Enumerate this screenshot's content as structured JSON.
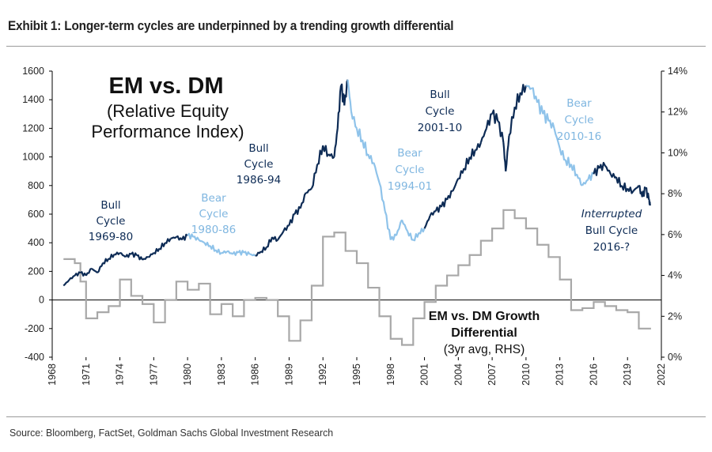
{
  "title": "Exhibit 1: Longer-term cycles are underpinned by a trending growth differential",
  "source": "Source: Bloomberg, FactSet, Goldman Sachs Global Investment Research",
  "colors": {
    "bull": "#0d2b55",
    "bear": "#8fc3ea",
    "growth": "#a8a8a8",
    "axis": "#000000"
  },
  "chart_data": {
    "type": "line",
    "title": "EM vs. DM (Relative Equity Performance Index)",
    "xlim": [
      1968,
      2022
    ],
    "ylim_left": [
      -400,
      1600
    ],
    "ylim_right": [
      0,
      14
    ],
    "x_ticks": [
      "1968",
      "1971",
      "1974",
      "1977",
      "1980",
      "1983",
      "1986",
      "1989",
      "1992",
      "1995",
      "1998",
      "2001",
      "2004",
      "2007",
      "2010",
      "2013",
      "2016",
      "2019",
      "2022"
    ],
    "y_left_ticks": [
      "1600",
      "1400",
      "1200",
      "1000",
      "800",
      "600",
      "400",
      "200",
      "0",
      "-200",
      "-400"
    ],
    "y_right_ticks": [
      "14%",
      "12%",
      "10%",
      "8%",
      "6%",
      "4%",
      "2%",
      "0%"
    ],
    "series": [
      {
        "name": "EM vs. DM Relative Equity Performance Index",
        "axis": "left",
        "points": [
          [
            1969.0,
            100
          ],
          [
            1969.5,
            140
          ],
          [
            1970.0,
            170
          ],
          [
            1970.5,
            190
          ],
          [
            1971.0,
            170
          ],
          [
            1971.5,
            220
          ],
          [
            1972.0,
            190
          ],
          [
            1972.5,
            260
          ],
          [
            1973.0,
            290
          ],
          [
            1973.5,
            320
          ],
          [
            1974.0,
            330
          ],
          [
            1974.5,
            300
          ],
          [
            1975.0,
            320
          ],
          [
            1975.5,
            310
          ],
          [
            1976.0,
            280
          ],
          [
            1976.5,
            300
          ],
          [
            1977.0,
            330
          ],
          [
            1977.5,
            360
          ],
          [
            1978.0,
            400
          ],
          [
            1978.5,
            430
          ],
          [
            1979.0,
            440
          ],
          [
            1979.5,
            420
          ],
          [
            1980.0,
            450
          ],
          [
            1980.5,
            440
          ],
          [
            1981.0,
            420
          ],
          [
            1981.5,
            400
          ],
          [
            1982.0,
            380
          ],
          [
            1982.5,
            350
          ],
          [
            1983.0,
            330
          ],
          [
            1983.5,
            340
          ],
          [
            1984.0,
            320
          ],
          [
            1984.5,
            330
          ],
          [
            1985.0,
            330
          ],
          [
            1985.5,
            320
          ],
          [
            1986.0,
            310
          ],
          [
            1986.5,
            340
          ],
          [
            1987.0,
            370
          ],
          [
            1987.5,
            440
          ],
          [
            1988.0,
            420
          ],
          [
            1988.5,
            480
          ],
          [
            1989.0,
            520
          ],
          [
            1989.5,
            600
          ],
          [
            1990.0,
            640
          ],
          [
            1990.5,
            750
          ],
          [
            1991.0,
            780
          ],
          [
            1991.5,
            950
          ],
          [
            1992.0,
            1080
          ],
          [
            1992.5,
            1020
          ],
          [
            1993.0,
            1000
          ],
          [
            1993.3,
            1200
          ],
          [
            1993.6,
            1500
          ],
          [
            1993.9,
            1360
          ],
          [
            1994.2,
            1540
          ],
          [
            1994.5,
            1320
          ],
          [
            1995.0,
            1200
          ],
          [
            1995.5,
            1120
          ],
          [
            1996.0,
            1020
          ],
          [
            1996.5,
            960
          ],
          [
            1997.0,
            820
          ],
          [
            1997.5,
            620
          ],
          [
            1998.0,
            420
          ],
          [
            1998.5,
            450
          ],
          [
            1999.0,
            560
          ],
          [
            1999.5,
            480
          ],
          [
            2000.0,
            420
          ],
          [
            2000.5,
            470
          ],
          [
            2001.0,
            500
          ],
          [
            2001.5,
            590
          ],
          [
            2002.0,
            620
          ],
          [
            2002.5,
            650
          ],
          [
            2003.0,
            700
          ],
          [
            2003.5,
            760
          ],
          [
            2004.0,
            850
          ],
          [
            2004.5,
            920
          ],
          [
            2005.0,
            1000
          ],
          [
            2005.5,
            1050
          ],
          [
            2006.0,
            1100
          ],
          [
            2006.5,
            1200
          ],
          [
            2007.0,
            1300
          ],
          [
            2007.5,
            1250
          ],
          [
            2008.0,
            1100
          ],
          [
            2008.2,
            900
          ],
          [
            2008.5,
            1150
          ],
          [
            2009.0,
            1350
          ],
          [
            2009.5,
            1450
          ],
          [
            2010.0,
            1500
          ],
          [
            2010.5,
            1480
          ],
          [
            2011.0,
            1380
          ],
          [
            2011.5,
            1300
          ],
          [
            2012.0,
            1250
          ],
          [
            2012.5,
            1200
          ],
          [
            2013.0,
            1060
          ],
          [
            2013.5,
            980
          ],
          [
            2014.0,
            950
          ],
          [
            2014.5,
            880
          ],
          [
            2015.0,
            800
          ],
          [
            2015.5,
            840
          ],
          [
            2016.0,
            880
          ],
          [
            2016.5,
            920
          ],
          [
            2017.0,
            940
          ],
          [
            2017.5,
            880
          ],
          [
            2018.0,
            860
          ],
          [
            2018.5,
            800
          ],
          [
            2019.0,
            780
          ],
          [
            2019.5,
            760
          ],
          [
            2020.0,
            800
          ],
          [
            2020.3,
            720
          ],
          [
            2020.6,
            780
          ],
          [
            2020.9,
            700
          ],
          [
            2021.0,
            660
          ]
        ]
      },
      {
        "name": "EM vs. DM Growth Differential (3yr avg, RHS)",
        "axis": "right",
        "points": [
          [
            1969,
            4.8
          ],
          [
            1970,
            4.6
          ],
          [
            1970.5,
            3.7
          ],
          [
            1971,
            1.9
          ],
          [
            1972,
            2.2
          ],
          [
            1973,
            2.5
          ],
          [
            1974,
            3.8
          ],
          [
            1975,
            3.0
          ],
          [
            1976,
            2.6
          ],
          [
            1977,
            1.7
          ],
          [
            1978,
            2.8
          ],
          [
            1979,
            3.7
          ],
          [
            1980,
            3.3
          ],
          [
            1981,
            3.6
          ],
          [
            1982,
            2.1
          ],
          [
            1983,
            2.6
          ],
          [
            1984,
            2.0
          ],
          [
            1985,
            2.8
          ],
          [
            1986,
            2.9
          ],
          [
            1987,
            2.8
          ],
          [
            1988,
            2.0
          ],
          [
            1989,
            0.8
          ],
          [
            1990,
            1.8
          ],
          [
            1991,
            3.5
          ],
          [
            1992,
            5.9
          ],
          [
            1993,
            6.1
          ],
          [
            1994,
            5.2
          ],
          [
            1995,
            4.6
          ],
          [
            1996,
            3.4
          ],
          [
            1997,
            2.0
          ],
          [
            1998,
            0.9
          ],
          [
            1999,
            0.6
          ],
          [
            2000,
            1.9
          ],
          [
            2001,
            2.7
          ],
          [
            2002,
            3.5
          ],
          [
            2003,
            4.0
          ],
          [
            2004,
            4.5
          ],
          [
            2005,
            5.0
          ],
          [
            2006,
            5.7
          ],
          [
            2007,
            6.3
          ],
          [
            2008,
            7.2
          ],
          [
            2009,
            6.8
          ],
          [
            2010,
            6.3
          ],
          [
            2011,
            5.5
          ],
          [
            2012,
            4.9
          ],
          [
            2013,
            3.8
          ],
          [
            2014,
            2.3
          ],
          [
            2015,
            2.4
          ],
          [
            2016,
            2.7
          ],
          [
            2017,
            2.5
          ],
          [
            2018,
            2.3
          ],
          [
            2019,
            2.2
          ],
          [
            2020,
            1.4
          ],
          [
            2020.8,
            1.4
          ]
        ]
      }
    ],
    "annotations": {
      "headline": "EM vs. DM",
      "subtitle_line1": "(Relative Equity",
      "subtitle_line2": "Performance Index)",
      "cycles": [
        {
          "style": "bull",
          "lines": [
            "Bull",
            "Cycle",
            "1969-80"
          ]
        },
        {
          "style": "bear",
          "lines": [
            "Bear",
            "Cycle",
            "1980-86"
          ]
        },
        {
          "style": "bull",
          "lines": [
            "Bull",
            "Cycle",
            "1986-94"
          ]
        },
        {
          "style": "bear",
          "lines": [
            "Bear",
            "Cycle",
            "1994-01"
          ]
        },
        {
          "style": "bull",
          "lines": [
            "Bull",
            "Cycle",
            "2001-10"
          ]
        },
        {
          "style": "bear",
          "lines": [
            "Bear",
            "Cycle",
            "2010-16"
          ]
        },
        {
          "style": "bull",
          "lines": [
            "Interrupted",
            "Bull Cycle",
            "2016-?"
          ]
        }
      ],
      "growth_label_line1": "EM vs. DM Growth",
      "growth_label_line2": "Differential",
      "growth_label_line3": "(3yr avg, RHS)"
    }
  }
}
